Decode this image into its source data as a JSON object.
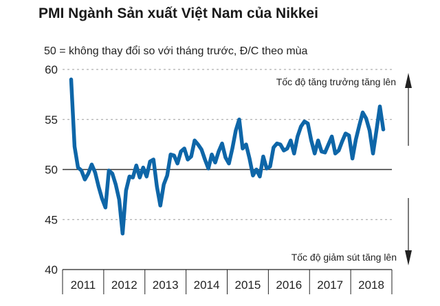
{
  "title": "PMI Ngành Sản xuất Việt Nam của Nikkei",
  "subtitle": "50 = không thay đổi so với tháng trước, Đ/C theo mùa",
  "annotations": {
    "up": "Tốc độ tăng trưởng tăng lên",
    "down": "Tốc độ giảm sút tăng lên"
  },
  "colors": {
    "line": "#0e66a8",
    "grid": "#9a9a9a",
    "axis": "#222222",
    "arrow": "#222222"
  },
  "chart_data": {
    "type": "line",
    "title": "PMI Ngành Sản xuất Việt Nam của Nikkei",
    "subtitle": "50 = không thay đổi so với tháng trước, Đ/C theo mùa",
    "xlabel": "",
    "ylabel": "",
    "ylim": [
      40,
      60
    ],
    "yticks": [
      40,
      45,
      50,
      55,
      60
    ],
    "grid": "horizontal dotted at 45, 55, 60; solid at 50",
    "x_start": "2011-03",
    "x_end": "2018-09",
    "years": [
      "2011",
      "2012",
      "2013",
      "2014",
      "2015",
      "2016",
      "2017",
      "2018"
    ],
    "series": [
      {
        "values": [
          59.0,
          52.3,
          50.2,
          49.9,
          49.0,
          49.6,
          50.5,
          49.7,
          48.3,
          47.1,
          46.2,
          49.9,
          49.6,
          48.5,
          47.0,
          43.6,
          47.9,
          49.3,
          49.2,
          50.4,
          49.2,
          50.2,
          49.3,
          50.8,
          51.0,
          48.3,
          46.4,
          48.5,
          49.4,
          51.5,
          51.4,
          50.6,
          51.8,
          52.1,
          51.0,
          51.3,
          52.9,
          52.5,
          52.0,
          51.0,
          50.1,
          51.5,
          50.7,
          51.8,
          52.6,
          51.2,
          50.6,
          52.1,
          53.9,
          55.0,
          52.1,
          52.5,
          51.1,
          49.4,
          50.0,
          49.3,
          51.3,
          50.1,
          50.3,
          52.2,
          52.6,
          52.5,
          51.9,
          52.1,
          52.9,
          51.6,
          53.3,
          54.3,
          54.8,
          54.6,
          52.9,
          51.6,
          52.9,
          51.8,
          51.7,
          52.5,
          53.3,
          51.6,
          51.9,
          52.8,
          53.6,
          53.4,
          51.1,
          53.0,
          54.4,
          55.7,
          55.1,
          53.9,
          51.6,
          53.9,
          56.3,
          54.0
        ]
      }
    ]
  }
}
